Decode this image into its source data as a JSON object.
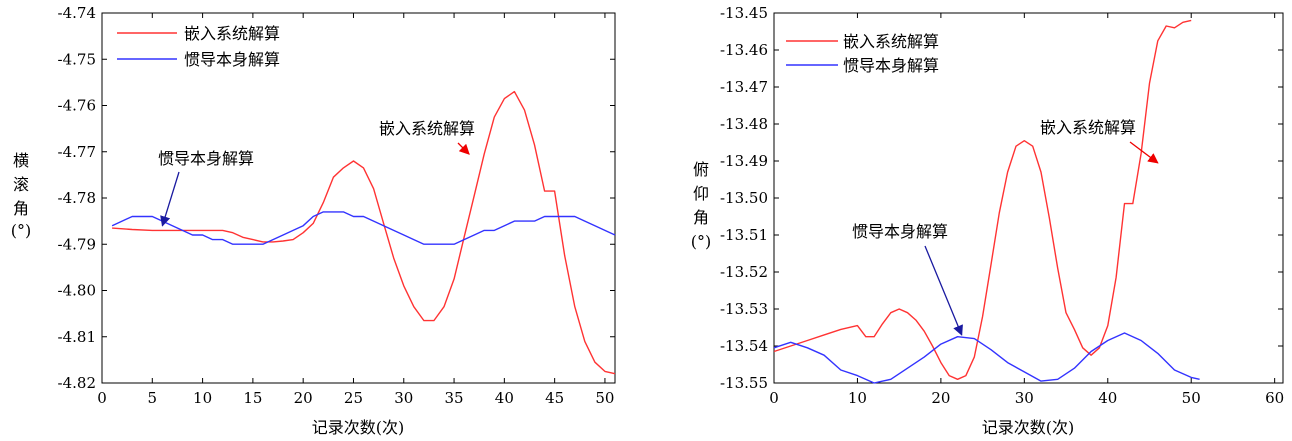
{
  "colors": {
    "red": "#ff3333",
    "blue": "#3333ff",
    "arrow_red": "#ee0000",
    "arrow_blue": "#1a1aa0"
  },
  "chart_data": [
    {
      "type": "line",
      "xlabel": "记录次数(次)",
      "ylabel": [
        "横",
        "滚",
        "角",
        "(°)"
      ],
      "xlim": [
        0,
        51
      ],
      "ylim": [
        -4.82,
        -4.74
      ],
      "xticks": [
        0,
        5,
        10,
        15,
        20,
        25,
        30,
        35,
        40,
        45,
        50
      ],
      "yticks": [
        -4.74,
        -4.75,
        -4.76,
        -4.77,
        -4.78,
        -4.79,
        -4.8,
        -4.81,
        -4.82
      ],
      "ytick_labels": [
        "-4.74",
        "-4.75",
        "-4.76",
        "-4.77",
        "-4.78",
        "-4.79",
        "-4.80",
        "-4.81",
        "-4.82"
      ],
      "grid": false,
      "legend": "top-left",
      "series": [
        {
          "name": "嵌入系统解算",
          "color": "red",
          "x": [
            1,
            3,
            5,
            7,
            9,
            11,
            12,
            13,
            14,
            15,
            16,
            17,
            18,
            19,
            20,
            21,
            22,
            23,
            24,
            25,
            26,
            27,
            28,
            29,
            30,
            31,
            32,
            33,
            34,
            35,
            36,
            37,
            38,
            39,
            40,
            41,
            42,
            43,
            44,
            45,
            46,
            47,
            48,
            49,
            50,
            51
          ],
          "y": [
            -4.7865,
            -4.7868,
            -4.787,
            -4.787,
            -4.787,
            -4.787,
            -4.787,
            -4.7875,
            -4.7885,
            -4.789,
            -4.7895,
            -4.7895,
            -4.7893,
            -4.789,
            -4.7875,
            -4.7855,
            -4.781,
            -4.7755,
            -4.7735,
            -4.772,
            -4.7735,
            -4.778,
            -4.7855,
            -4.793,
            -4.799,
            -4.8035,
            -4.8065,
            -4.8065,
            -4.8035,
            -4.7975,
            -4.7885,
            -4.7795,
            -4.7705,
            -4.7625,
            -4.7585,
            -4.757,
            -4.761,
            -4.7685,
            -4.7785,
            -4.7785,
            -4.7925,
            -4.8035,
            -4.811,
            -4.8155,
            -4.8175,
            -4.818
          ]
        },
        {
          "name": "惯导本身解算",
          "color": "blue",
          "x": [
            1,
            2,
            3,
            4,
            5,
            6,
            7,
            8,
            9,
            10,
            11,
            12,
            13,
            14,
            15,
            16,
            17,
            18,
            19,
            20,
            21,
            22,
            23,
            24,
            25,
            26,
            27,
            28,
            29,
            30,
            31,
            32,
            33,
            34,
            35,
            36,
            37,
            38,
            39,
            40,
            41,
            42,
            43,
            44,
            45,
            46,
            47,
            48,
            49,
            50,
            51
          ],
          "y": [
            -4.786,
            -4.785,
            -4.784,
            -4.784,
            -4.784,
            -4.785,
            -4.786,
            -4.787,
            -4.788,
            -4.788,
            -4.789,
            -4.789,
            -4.79,
            -4.79,
            -4.79,
            -4.79,
            -4.789,
            -4.788,
            -4.787,
            -4.786,
            -4.784,
            -4.783,
            -4.783,
            -4.783,
            -4.784,
            -4.784,
            -4.785,
            -4.786,
            -4.787,
            -4.788,
            -4.789,
            -4.79,
            -4.79,
            -4.79,
            -4.79,
            -4.789,
            -4.788,
            -4.787,
            -4.787,
            -4.786,
            -4.785,
            -4.785,
            -4.785,
            -4.784,
            -4.784,
            -4.784,
            -4.784,
            -4.785,
            -4.786,
            -4.787,
            -4.788
          ]
        }
      ],
      "annotations": [
        {
          "text": "惯导本身解算",
          "series": "blue",
          "point": [
            6,
            -4.786
          ]
        },
        {
          "text": "嵌入系统解算",
          "series": "red",
          "point": [
            36.5,
            -4.7705
          ]
        }
      ]
    },
    {
      "type": "line",
      "xlabel": "记录次数(次)",
      "ylabel": [
        "俯",
        "仰",
        "角",
        "(°)"
      ],
      "xlim": [
        0,
        61
      ],
      "ylim": [
        -13.55,
        -13.45
      ],
      "xticks": [
        0,
        10,
        20,
        30,
        40,
        50,
        60
      ],
      "yticks": [
        -13.45,
        -13.46,
        -13.47,
        -13.48,
        -13.49,
        -13.5,
        -13.51,
        -13.52,
        -13.53,
        -13.54,
        -13.55
      ],
      "ytick_labels": [
        "-13.45",
        "-13.46",
        "-13.47",
        "-13.48",
        "-13.49",
        "-13.50",
        "-13.51",
        "-13.52",
        "-13.53",
        "-13.54",
        "-13.55"
      ],
      "grid": false,
      "legend": "top-left",
      "series": [
        {
          "name": "嵌入系统解算",
          "color": "red",
          "x": [
            0,
            2,
            4,
            6,
            8,
            10,
            11,
            12,
            13,
            14,
            15,
            16,
            17,
            18,
            19,
            20,
            21,
            22,
            23,
            24,
            25,
            26,
            27,
            28,
            29,
            30,
            31,
            32,
            33,
            34,
            35,
            36,
            37,
            38,
            39,
            40,
            41,
            42,
            43,
            44,
            45,
            46,
            47,
            48,
            49,
            50
          ],
          "y": [
            -13.5415,
            -13.54,
            -13.5385,
            -13.537,
            -13.5355,
            -13.5345,
            -13.5375,
            -13.5375,
            -13.534,
            -13.531,
            -13.53,
            -13.531,
            -13.533,
            -13.536,
            -13.54,
            -13.5445,
            -13.548,
            -13.549,
            -13.548,
            -13.543,
            -13.532,
            -13.518,
            -13.504,
            -13.493,
            -13.486,
            -13.4845,
            -13.486,
            -13.493,
            -13.5055,
            -13.519,
            -13.531,
            -13.5355,
            -13.5405,
            -13.5425,
            -13.5405,
            -13.5345,
            -13.5215,
            -13.5015,
            -13.5015,
            -13.488,
            -13.469,
            -13.4575,
            -13.4535,
            -13.454,
            -13.4525,
            -13.452
          ]
        },
        {
          "name": "惯导本身解算",
          "color": "blue",
          "x": [
            0,
            2,
            4,
            6,
            8,
            10,
            12,
            14,
            16,
            18,
            20,
            22,
            24,
            26,
            28,
            30,
            32,
            34,
            36,
            38,
            40,
            42,
            44,
            46,
            48,
            50,
            51
          ],
          "y": [
            -13.5405,
            -13.539,
            -13.5405,
            -13.5425,
            -13.5465,
            -13.548,
            -13.55,
            -13.549,
            -13.546,
            -13.543,
            -13.5395,
            -13.5375,
            -13.538,
            -13.541,
            -13.5445,
            -13.547,
            -13.5495,
            -13.549,
            -13.546,
            -13.5415,
            -13.5385,
            -13.5365,
            -13.5385,
            -13.542,
            -13.5465,
            -13.5485,
            -13.549
          ]
        }
      ],
      "annotations": [
        {
          "text": "惯导本身解算",
          "series": "blue",
          "point": [
            22.5,
            -13.537
          ]
        },
        {
          "text": "嵌入系统解算",
          "series": "red",
          "point": [
            46,
            -13.4905
          ]
        }
      ]
    }
  ]
}
